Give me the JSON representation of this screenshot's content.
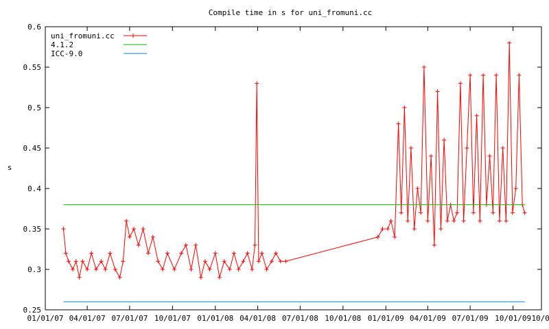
{
  "chart_data": {
    "type": "line",
    "title": "Compile time in s for uni_fromuni.cc",
    "ylabel": "s",
    "xlabel": "",
    "ylim": [
      0.25,
      0.6
    ],
    "xlim": [
      "2007-01-01",
      "2009-12-01"
    ],
    "yticks": [
      0.25,
      0.3,
      0.35,
      0.4,
      0.45,
      0.5,
      0.55,
      0.6
    ],
    "xticks": [
      "2007-01-01",
      "2007-04-01",
      "2007-07-01",
      "2007-10-01",
      "2008-01-01",
      "2008-04-01",
      "2008-07-01",
      "2008-10-01",
      "2009-01-01",
      "2009-04-01",
      "2009-07-01",
      "2009-10-01"
    ],
    "ytick_labels": [
      "0.25",
      "0.3",
      "0.35",
      "0.4",
      "0.45",
      "0.5",
      "0.55",
      "0.6"
    ],
    "xtick_labels": [
      "01/01/07",
      "04/01/07",
      "07/01/07",
      "10/01/07",
      "01/01/08",
      "04/01/08",
      "07/01/08",
      "10/01/08",
      "01/01/09",
      "04/01/09",
      "07/01/09",
      "10/01/09"
    ],
    "legend_position": "top-left",
    "grid": false,
    "series": [
      {
        "name": "uni_fromuni.cc",
        "color": "#ff0000",
        "style": "linespoints",
        "x": [
          "2007-02-09",
          "2007-02-14",
          "2007-02-20",
          "2007-03-01",
          "2007-03-08",
          "2007-03-15",
          "2007-03-22",
          "2007-04-01",
          "2007-04-10",
          "2007-04-20",
          "2007-05-01",
          "2007-05-10",
          "2007-05-20",
          "2007-05-31",
          "2007-06-10",
          "2007-06-17",
          "2007-06-24",
          "2007-07-01",
          "2007-07-10",
          "2007-07-20",
          "2007-07-30",
          "2007-08-10",
          "2007-08-20",
          "2007-08-31",
          "2007-09-10",
          "2007-09-20",
          "2007-10-05",
          "2007-10-20",
          "2007-10-30",
          "2007-11-10",
          "2007-11-20",
          "2007-12-01",
          "2007-12-10",
          "2007-12-20",
          "2008-01-01",
          "2008-01-10",
          "2008-01-20",
          "2008-02-01",
          "2008-02-10",
          "2008-02-20",
          "2008-03-01",
          "2008-03-10",
          "2008-03-20",
          "2008-03-26",
          "2008-03-30",
          "2008-04-03",
          "2008-04-10",
          "2008-04-20",
          "2008-05-01",
          "2008-05-10",
          "2008-05-20",
          "2008-05-31",
          "2008-12-15",
          "2008-12-25",
          "2009-01-05",
          "2009-01-12",
          "2009-01-20",
          "2009-01-28",
          "2009-02-03",
          "2009-02-10",
          "2009-02-17",
          "2009-02-24",
          "2009-03-03",
          "2009-03-10",
          "2009-03-17",
          "2009-03-24",
          "2009-04-01",
          "2009-04-08",
          "2009-04-15",
          "2009-04-22",
          "2009-04-29",
          "2009-05-06",
          "2009-05-13",
          "2009-05-20",
          "2009-05-27",
          "2009-06-03",
          "2009-06-10",
          "2009-06-17",
          "2009-06-24",
          "2009-07-01",
          "2009-07-08",
          "2009-07-15",
          "2009-07-22",
          "2009-07-29",
          "2009-08-05",
          "2009-08-12",
          "2009-08-19",
          "2009-08-26",
          "2009-09-02",
          "2009-09-09",
          "2009-09-16",
          "2009-09-23",
          "2009-09-30",
          "2009-10-07",
          "2009-10-14",
          "2009-10-21",
          "2009-10-26"
        ],
        "y": [
          0.35,
          0.32,
          0.31,
          0.3,
          0.31,
          0.29,
          0.31,
          0.3,
          0.32,
          0.3,
          0.31,
          0.3,
          0.32,
          0.3,
          0.29,
          0.31,
          0.36,
          0.34,
          0.35,
          0.33,
          0.35,
          0.32,
          0.34,
          0.31,
          0.3,
          0.32,
          0.3,
          0.32,
          0.33,
          0.3,
          0.33,
          0.29,
          0.31,
          0.3,
          0.32,
          0.29,
          0.31,
          0.3,
          0.32,
          0.3,
          0.31,
          0.32,
          0.3,
          0.33,
          0.53,
          0.31,
          0.32,
          0.3,
          0.31,
          0.32,
          0.31,
          0.31,
          0.34,
          0.35,
          0.35,
          0.36,
          0.34,
          0.48,
          0.37,
          0.5,
          0.36,
          0.45,
          0.35,
          0.4,
          0.37,
          0.55,
          0.36,
          0.44,
          0.33,
          0.52,
          0.35,
          0.46,
          0.36,
          0.38,
          0.36,
          0.37,
          0.53,
          0.36,
          0.45,
          0.54,
          0.37,
          0.49,
          0.36,
          0.54,
          0.38,
          0.44,
          0.37,
          0.54,
          0.36,
          0.45,
          0.36,
          0.58,
          0.37,
          0.4,
          0.54,
          0.38,
          0.37
        ]
      },
      {
        "name": "4.1.2",
        "color": "#00c000",
        "style": "lines",
        "x": [
          "2007-02-09",
          "2009-10-26"
        ],
        "y": [
          0.38,
          0.38
        ]
      },
      {
        "name": "ICC-9.0",
        "color": "#0080ff",
        "style": "lines",
        "x": [
          "2007-02-09",
          "2009-10-26"
        ],
        "y": [
          0.26,
          0.26
        ]
      }
    ]
  }
}
